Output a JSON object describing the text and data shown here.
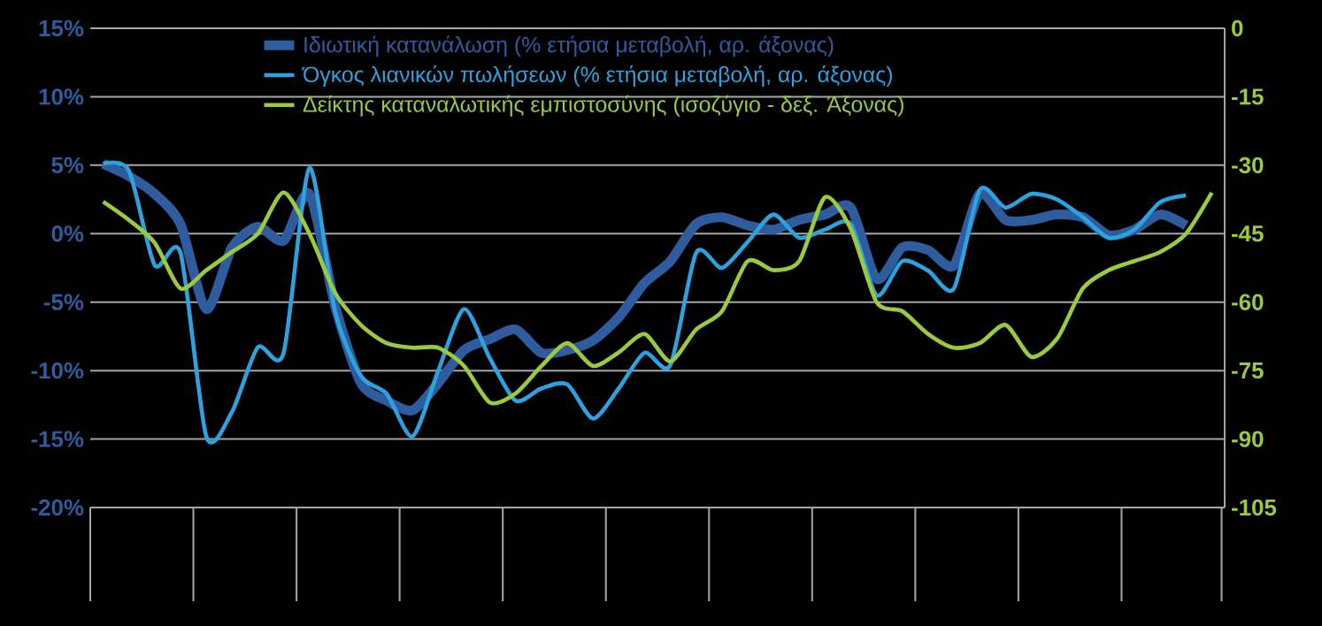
{
  "chart_data": {
    "type": "line",
    "categories": [
      null,
      null,
      null,
      null,
      null,
      null,
      null,
      null,
      null,
      null,
      null,
      null,
      null,
      null,
      null,
      null,
      null,
      null,
      null,
      null,
      null,
      null,
      null,
      null,
      null,
      null,
      null,
      null,
      null,
      null,
      null,
      null,
      null,
      null,
      null,
      null,
      null,
      null,
      null,
      null,
      null,
      null,
      null,
      null
    ],
    "series": [
      {
        "name": "Ιδιωτική κατανάλωση (% ετήσια μεταβολή, αρ. άξονας)",
        "color": "#2f5c9e",
        "values": [
          5.1,
          4.2,
          2.9,
          0.7,
          -5.5,
          -1,
          0.5,
          -0.5,
          2.9,
          -5.3,
          -10.9,
          -12.2,
          -12.9,
          -10.9,
          -8.5,
          -7.7,
          -7,
          -8.7,
          -8.5,
          -7.8,
          -6.1,
          -3.6,
          -2,
          0.7,
          1.2,
          0.6,
          0.3,
          1,
          1.4,
          1.9,
          -3.3,
          -1,
          -1.2,
          -2.3,
          2.9,
          1,
          1,
          1.4,
          1.2,
          -0.1,
          0.3,
          1.4,
          0.6,
          null
        ]
      },
      {
        "name": "Όγκος λιανικών πωλήσεων (% ετήσια μεταβολή, αρ. άξονας)",
        "color": "#2aa3e0",
        "values": [
          5.1,
          4.6,
          -2.3,
          -1.4,
          -14.8,
          -13,
          -8.3,
          -8.7,
          4.8,
          -5.7,
          -10.4,
          -11.7,
          -14.8,
          -10,
          -5.5,
          -9.1,
          -12.2,
          -11.3,
          -11,
          -13.5,
          -11.3,
          -8.7,
          -9.6,
          -1.4,
          -2.5,
          -0.6,
          1.4,
          -0.3,
          0.3,
          0.7,
          -4.5,
          -2,
          -2.7,
          -4,
          3.2,
          1.9,
          2.9,
          2.5,
          1.2,
          -0.3,
          0.3,
          2.3,
          2.8,
          null
        ]
      },
      {
        "name": "Δείκτης καταναλωτικής εμπιστοσύνης (ισοζύγιο - δεξ. Άξονας)",
        "color": "#9bcb3c",
        "axis": "y2",
        "values": [
          -38,
          -42,
          -47,
          -57,
          -53,
          -49,
          -45,
          -36,
          -45,
          -58,
          -65,
          -69,
          -70,
          -70,
          -74,
          -82,
          -80,
          -74,
          -69,
          -74,
          -71,
          -67,
          -73,
          -66,
          -62,
          -51,
          -53,
          -51,
          -37,
          -44,
          -60,
          -62,
          -67,
          -70,
          -69,
          -65,
          -72,
          -68,
          -57,
          -53,
          -51,
          -49,
          -45,
          -36
        ]
      }
    ],
    "ylim": [
      -20,
      15
    ],
    "yticks": [
      {
        "value": -20,
        "label": "-20%"
      },
      {
        "value": -15,
        "label": "-15%"
      },
      {
        "value": -10,
        "label": "-10%"
      },
      {
        "value": -5,
        "label": "-5%"
      },
      {
        "value": 0,
        "label": "0%"
      },
      {
        "value": 5,
        "label": "5%"
      },
      {
        "value": 10,
        "label": "10%"
      },
      {
        "value": 15,
        "label": "15%"
      }
    ],
    "y2lim": [
      -105,
      0
    ],
    "y2ticks": [
      -105,
      -90,
      -75,
      -60,
      -45,
      -30,
      -15,
      0
    ],
    "grid": "y",
    "legend": "top",
    "marker": "none",
    "line_style": "solid"
  }
}
